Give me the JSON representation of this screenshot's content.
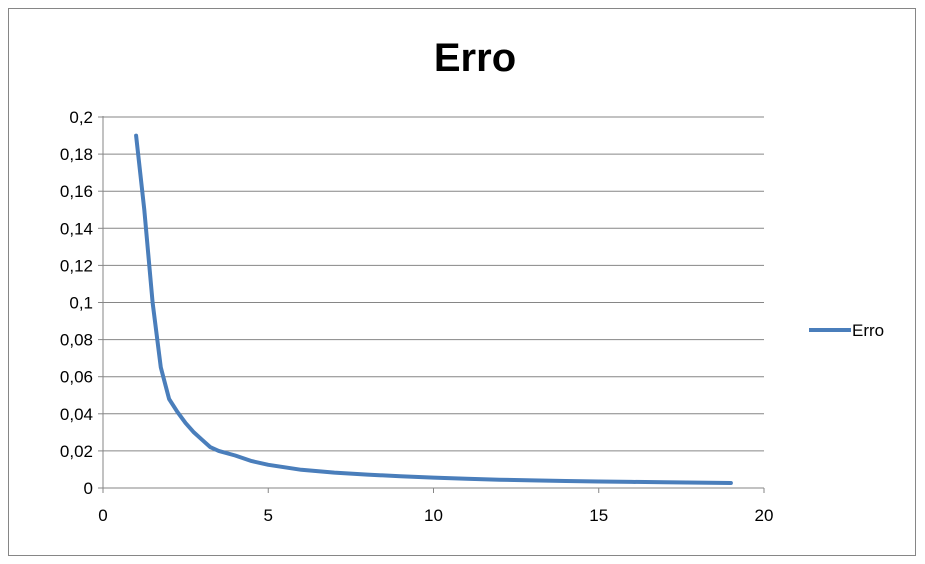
{
  "chart_data": {
    "type": "line",
    "title": "Erro",
    "xlabel": "",
    "ylabel": "",
    "xlim": [
      0,
      20
    ],
    "ylim": [
      0,
      0.2
    ],
    "x_ticks": [
      0,
      5,
      10,
      15,
      20
    ],
    "x_tick_labels": [
      "0",
      "5",
      "10",
      "15",
      "20"
    ],
    "y_ticks": [
      0,
      0.02,
      0.04,
      0.06,
      0.08,
      0.1,
      0.12,
      0.14,
      0.16,
      0.18,
      0.2
    ],
    "y_tick_labels": [
      "0",
      "0,02",
      "0,04",
      "0,06",
      "0,08",
      "0,1",
      "0,12",
      "0,14",
      "0,16",
      "0,18",
      "0,2"
    ],
    "grid": "horizontal",
    "legend_position": "right",
    "series": [
      {
        "name": "Erro",
        "color": "#4a7ebb",
        "x": [
          1,
          1.25,
          1.5,
          1.75,
          2,
          2.25,
          2.5,
          2.75,
          3,
          3.25,
          3.5,
          4,
          4.5,
          5,
          6,
          7,
          8,
          9,
          10,
          11,
          12,
          13,
          14,
          15,
          16,
          17,
          18,
          19
        ],
        "y": [
          0.19,
          0.15,
          0.1,
          0.065,
          0.048,
          0.041,
          0.035,
          0.03,
          0.026,
          0.022,
          0.02,
          0.0175,
          0.0145,
          0.0125,
          0.0098,
          0.0083,
          0.0072,
          0.0063,
          0.0056,
          0.005,
          0.0045,
          0.0041,
          0.0038,
          0.0035,
          0.0033,
          0.0031,
          0.0029,
          0.0027
        ]
      }
    ]
  }
}
